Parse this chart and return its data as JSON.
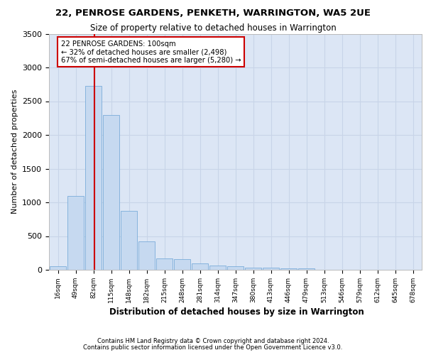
{
  "title1": "22, PENROSE GARDENS, PENKETH, WARRINGTON, WA5 2UE",
  "title2": "Size of property relative to detached houses in Warrington",
  "xlabel": "Distribution of detached houses by size in Warrington",
  "ylabel": "Number of detached properties",
  "bar_color": "#c6d9f0",
  "bar_edge_color": "#7aacda",
  "grid_color": "#c8d4e8",
  "background_color": "#dce6f5",
  "vline_color": "#cc0000",
  "annotation_text": "22 PENROSE GARDENS: 100sqm\n← 32% of detached houses are smaller (2,498)\n67% of semi-detached houses are larger (5,280) →",
  "footer1": "Contains HM Land Registry data © Crown copyright and database right 2024.",
  "footer2": "Contains public sector information licensed under the Open Government Licence v3.0.",
  "categories": [
    "16sqm",
    "49sqm",
    "82sqm",
    "115sqm",
    "148sqm",
    "182sqm",
    "215sqm",
    "248sqm",
    "281sqm",
    "314sqm",
    "347sqm",
    "380sqm",
    "413sqm",
    "446sqm",
    "479sqm",
    "513sqm",
    "546sqm",
    "579sqm",
    "612sqm",
    "645sqm",
    "678sqm"
  ],
  "bin_starts": [
    0,
    1,
    2,
    3,
    4,
    5,
    6,
    7,
    8,
    9,
    10,
    11,
    12,
    13,
    14,
    15,
    16,
    17,
    18,
    19,
    20
  ],
  "bar_heights": [
    50,
    1100,
    2730,
    2290,
    870,
    420,
    170,
    160,
    90,
    65,
    55,
    35,
    30,
    25,
    20,
    5,
    5,
    3,
    3,
    2,
    2
  ],
  "vline_x": 2.06,
  "ylim_max": 3500,
  "yticks": [
    0,
    500,
    1000,
    1500,
    2000,
    2500,
    3000,
    3500
  ]
}
